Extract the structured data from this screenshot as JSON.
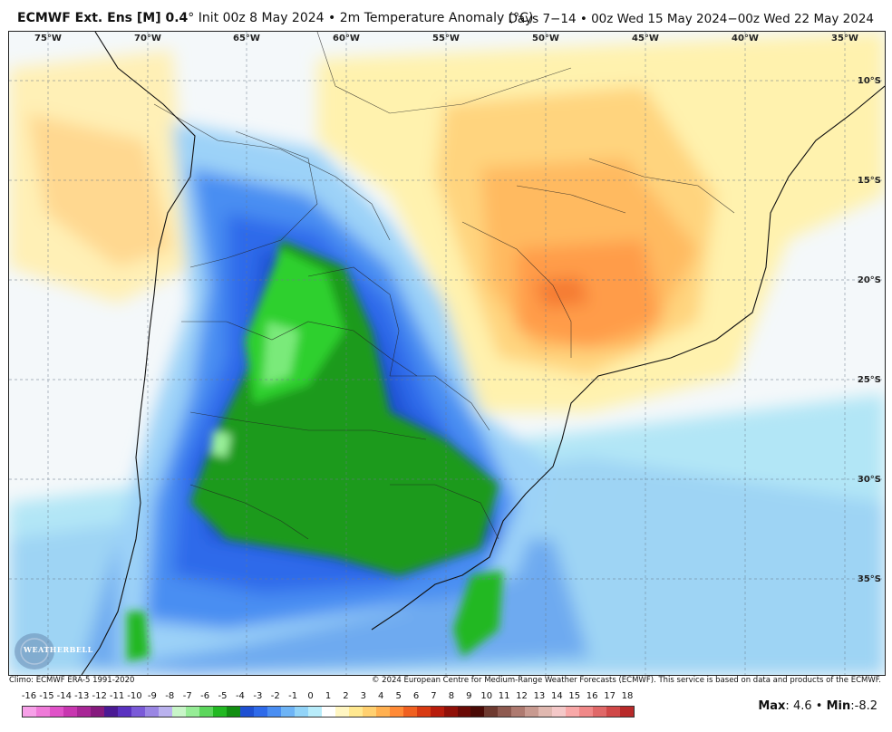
{
  "header": {
    "model": "ECMWF Ext. Ens [M] 0.4",
    "degree": "°",
    "init": "Init 00z 8 May 2024",
    "sep": "•",
    "field": "2m Temperature Anomaly (°C)",
    "period": "Days 7−14 • 00z Wed 15 May 2024−00z Wed 22 May 2024"
  },
  "map": {
    "lon_labels": [
      "75°W",
      "70°W",
      "65°W",
      "60°W",
      "55°W",
      "50°W",
      "45°W",
      "40°W",
      "35°W"
    ],
    "lat_labels": [
      "10°S",
      "15°S",
      "20°S",
      "25°S",
      "30°S",
      "35°S"
    ],
    "logo_text": "WEATHERBELL"
  },
  "footer": {
    "climo": "Climo: ECMWF ERA-5 1991-2020",
    "copyright": "© 2024 European Centre for Medium-Range Weather Forecasts (ECMWF). This service is based on data and products of the ECMWF."
  },
  "colorbar": {
    "ticks": [
      "-16",
      "-15",
      "-14",
      "-13",
      "-12",
      "-11",
      "-10",
      "-9",
      "-8",
      "-7",
      "-6",
      "-5",
      "-4",
      "-3",
      "-2",
      "-1",
      "0",
      "1",
      "2",
      "3",
      "4",
      "5",
      "6",
      "7",
      "8",
      "9",
      "10",
      "11",
      "12",
      "13",
      "14",
      "15",
      "16",
      "17",
      "18"
    ],
    "colors": [
      "#f7a0e8",
      "#ef7ad8",
      "#e052c8",
      "#c836b0",
      "#a82696",
      "#861a7e",
      "#4b1a94",
      "#5a32c0",
      "#7a5ad8",
      "#9a86e4",
      "#bab2ee",
      "#c8f5c8",
      "#96ec96",
      "#5cd65c",
      "#22b822",
      "#128e12",
      "#1e50d2",
      "#2e6aea",
      "#4a8ef2",
      "#6eb4f6",
      "#92d4f8",
      "#b8ecfa",
      "#ffffff",
      "#fff6c2",
      "#ffe890",
      "#ffd070",
      "#ffb050",
      "#ff8a36",
      "#f06020",
      "#d83a12",
      "#b81c0c",
      "#901008",
      "#6a0a06",
      "#4a0a06",
      "#6e3a30",
      "#8e5a50",
      "#ae7a70",
      "#c89a90",
      "#e0b8b0",
      "#f4c8c8",
      "#f8a8a8",
      "#f08888",
      "#e06868",
      "#d04848",
      "#b82a2a"
    ],
    "max_label": "Max",
    "max_value": "4.6",
    "min_label": "Min",
    "min_value": "-8.2",
    "sep": "•"
  }
}
